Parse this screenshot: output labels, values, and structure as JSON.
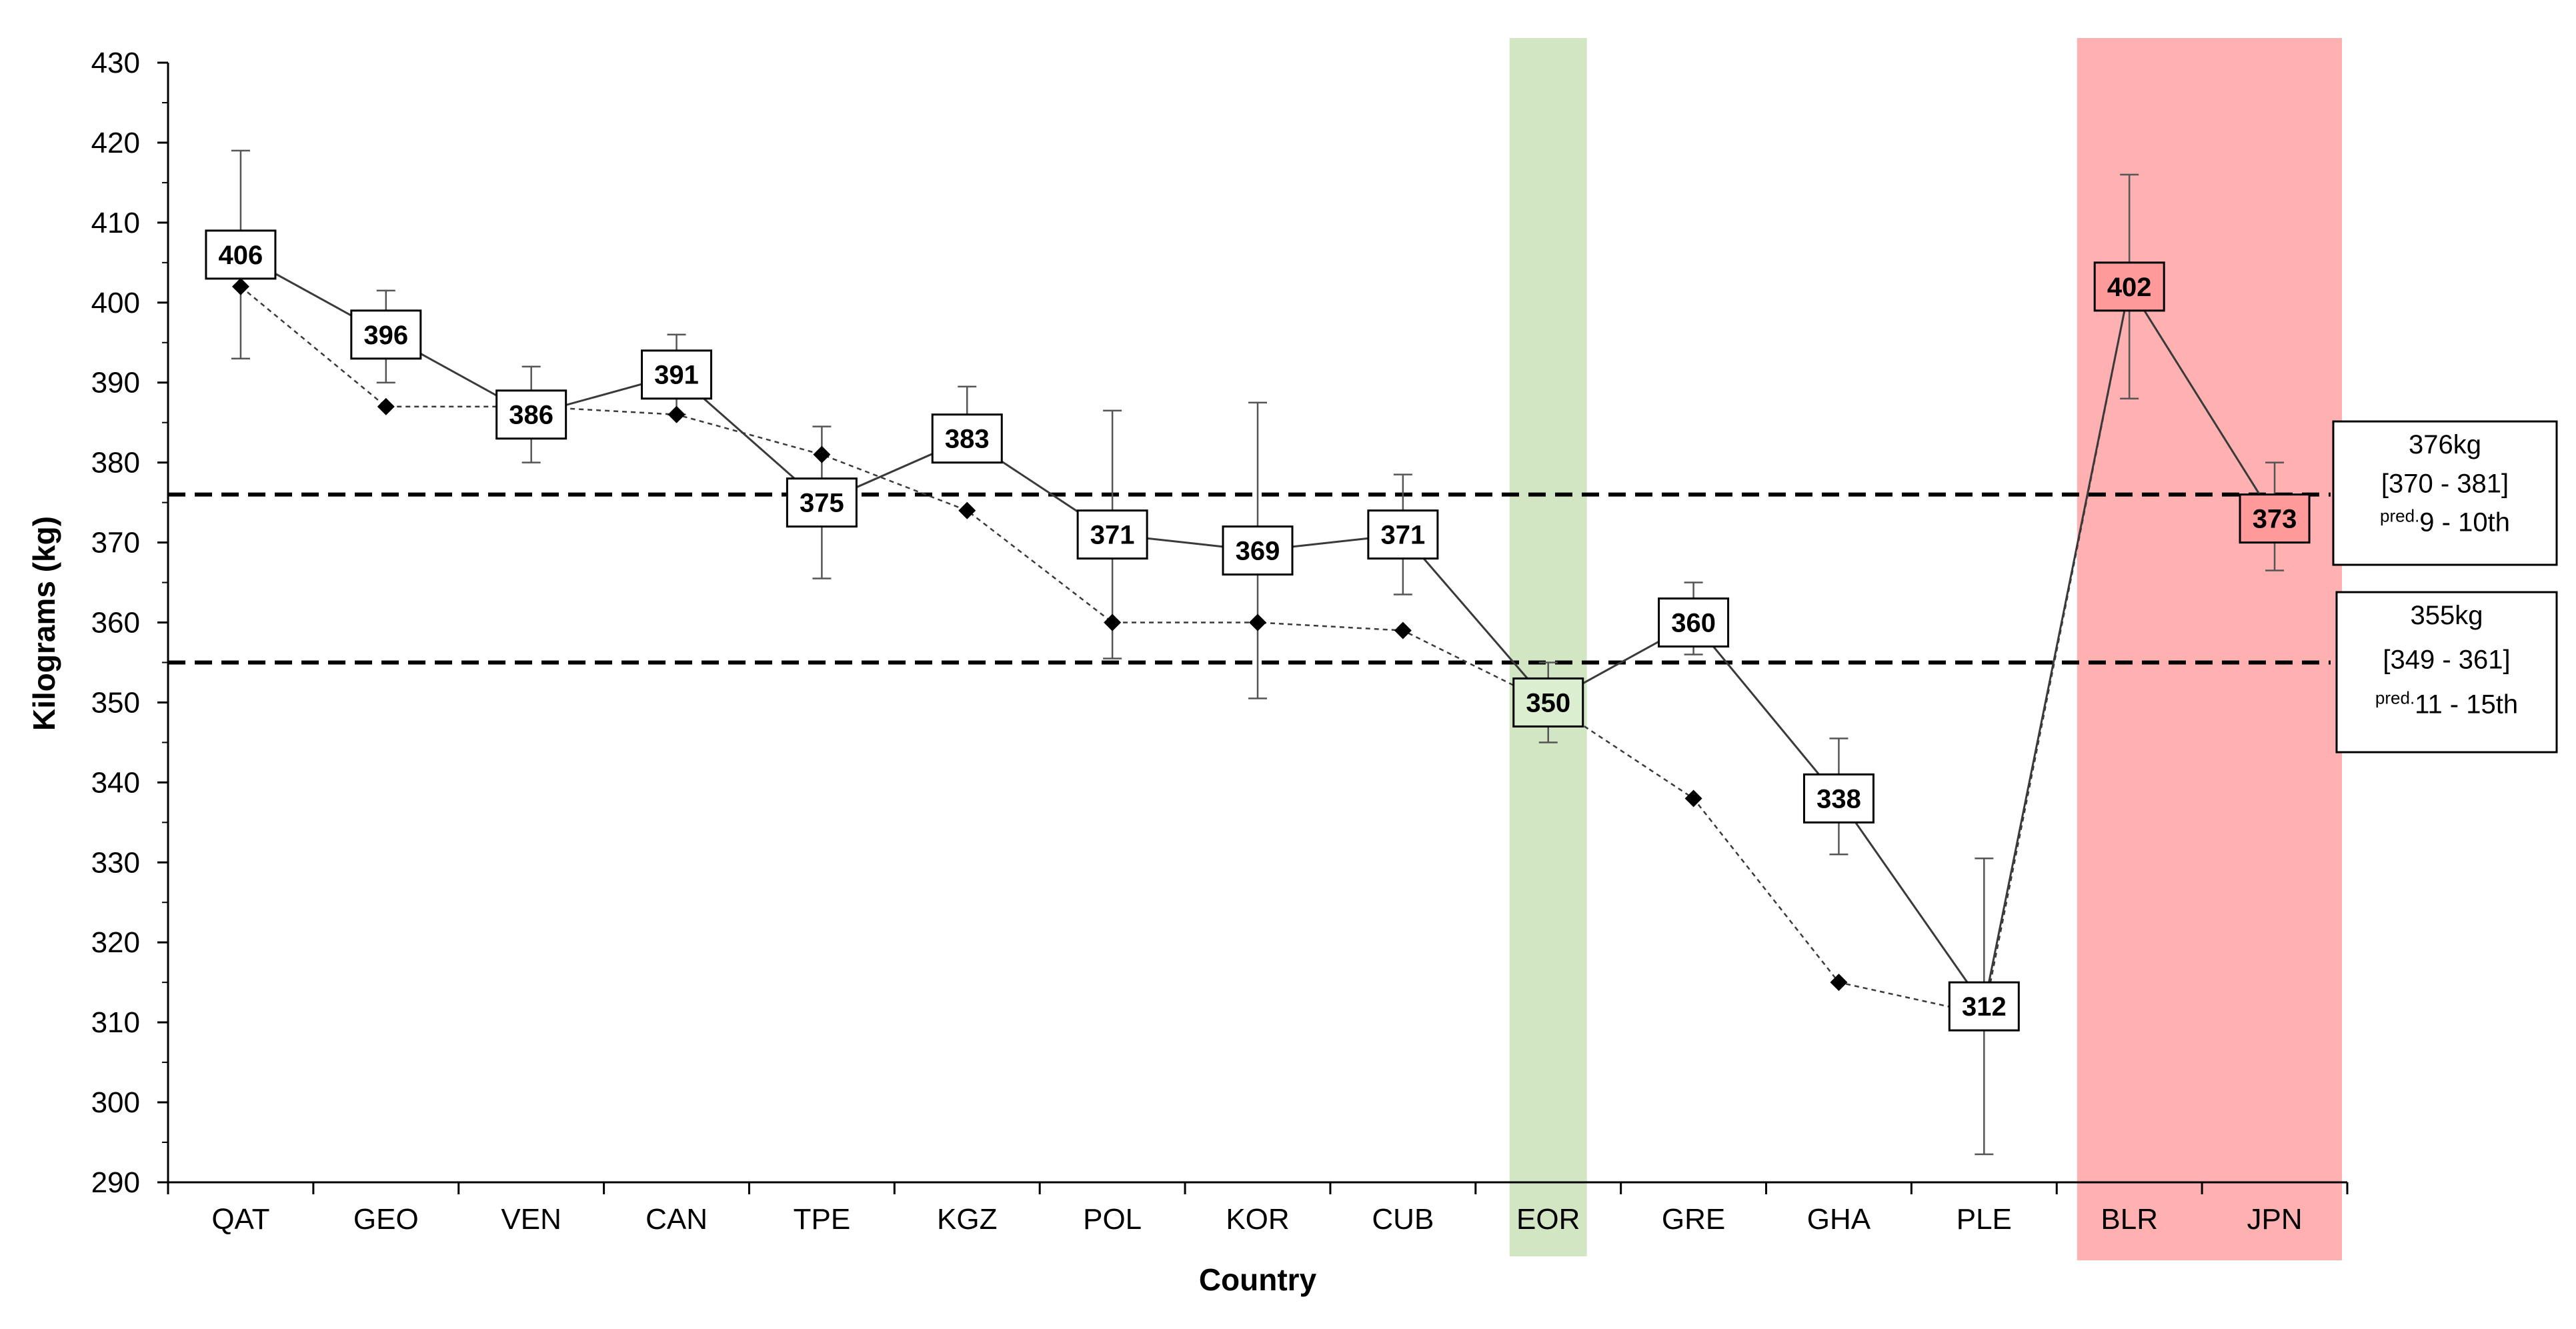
{
  "chart_data": {
    "type": "line",
    "xlabel": "Country",
    "ylabel": "Kilograms (kg)",
    "ylim": [
      290,
      430
    ],
    "yticks": [
      290,
      300,
      310,
      320,
      330,
      340,
      350,
      360,
      370,
      380,
      390,
      400,
      410,
      420,
      430
    ],
    "categories": [
      "QAT",
      "GEO",
      "VEN",
      "CAN",
      "TPE",
      "KGZ",
      "POL",
      "KOR",
      "CUB",
      "EOR",
      "GRE",
      "GHA",
      "PLE",
      "BLR",
      "JPN"
    ],
    "series": [
      {
        "style": "solid",
        "marker": "labeled-box",
        "values": [
          406,
          396,
          386,
          391,
          375,
          383,
          371,
          369,
          371,
          350,
          360,
          338,
          312,
          402,
          373
        ],
        "labels": [
          "406",
          "396",
          "386",
          "391",
          "375",
          "383",
          "371",
          "369",
          "371",
          "350",
          "360",
          "338",
          "312",
          "402",
          "373"
        ],
        "error_low": [
          393,
          390,
          380,
          386,
          365.5,
          380,
          355.5,
          350.5,
          363.5,
          345,
          356,
          331,
          293.5,
          388,
          366.5
        ],
        "error_high": [
          419,
          401.5,
          392,
          396,
          384.5,
          389.5,
          386.5,
          387.5,
          378.5,
          355,
          365,
          345.5,
          330.5,
          416,
          380
        ]
      },
      {
        "style": "dotted",
        "marker": "diamond",
        "values": [
          402,
          387,
          387,
          386,
          381,
          374,
          360,
          360,
          359,
          350,
          338,
          315,
          311,
          402,
          373
        ]
      }
    ],
    "reference_lines": [
      {
        "value": 376,
        "lines": [
          "376kg",
          "[370 - 381]"
        ],
        "sup": "pred.",
        "pred": "9 - 10th"
      },
      {
        "value": 355,
        "lines": [
          "355kg",
          "[349 - 361]"
        ],
        "sup": "pred.",
        "pred": "11 - 15th"
      }
    ],
    "highlights": [
      {
        "categories": [
          "EOR"
        ],
        "color": "#d2e6c4"
      },
      {
        "categories": [
          "BLR",
          "JPN"
        ],
        "color": "#ffb0b0"
      }
    ],
    "colors": {
      "axis": "#000000",
      "series_line": "#3a3a3a",
      "error_bar": "#555555",
      "box_fill": "#ffffff",
      "green_box_fill": "#dbeed0",
      "green_text": "#2f4a2a",
      "red_box_fill": "#ff9a9a",
      "red_text": "#5a0000",
      "green_tick_text": "#5a6b50",
      "red_tick_text": "#6a1a1a"
    }
  }
}
